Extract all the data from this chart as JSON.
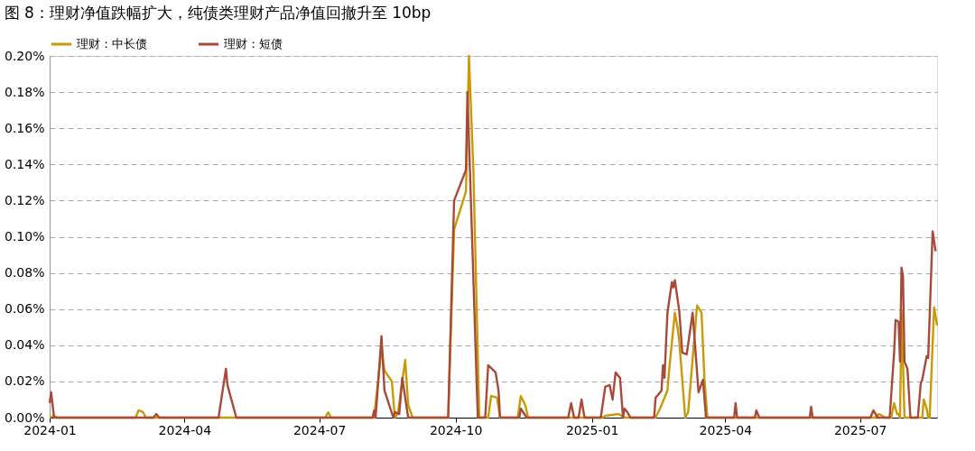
{
  "chart_data": {
    "type": "line",
    "title": "图 8：理财净值跌幅扩大，纯债类理财产品净值回撤升至 10bp",
    "xlim": [
      "2024-01-01",
      "2025-08-22"
    ],
    "xticks": [
      "2024-01",
      "2024-04",
      "2024-07",
      "2024-10",
      "2025-01",
      "2025-04",
      "2025-07"
    ],
    "ylim": [
      0,
      0.2
    ],
    "yticks": [
      {
        "value": 0,
        "label": "0.00%"
      },
      {
        "value": 0.02,
        "label": "0.02%"
      },
      {
        "value": 0.04,
        "label": "0.04%"
      },
      {
        "value": 0.06,
        "label": "0.06%"
      },
      {
        "value": 0.08,
        "label": "0.08%"
      },
      {
        "value": 0.1,
        "label": "0.10%"
      },
      {
        "value": 0.12,
        "label": "0.12%"
      },
      {
        "value": 0.14,
        "label": "0.14%"
      },
      {
        "value": 0.16,
        "label": "0.16%"
      },
      {
        "value": 0.18,
        "label": "0.18%"
      },
      {
        "value": 0.2,
        "label": "0.20%"
      }
    ],
    "grid": "y",
    "legend": "top",
    "marker": "none",
    "line_style": "solid",
    "series": [
      {
        "name": "理财：中长债",
        "color": "#c99a06",
        "x": [
          "2024-01-01",
          "2024-01-04",
          "2024-01-06",
          "2024-02-28",
          "2024-03-01",
          "2024-03-04",
          "2024-03-06",
          "2024-07-05",
          "2024-07-07",
          "2024-07-09",
          "2024-08-07",
          "2024-08-12",
          "2024-08-14",
          "2024-08-19",
          "2024-08-21",
          "2024-08-23",
          "2024-08-28",
          "2024-08-30",
          "2024-09-02",
          "2024-09-26",
          "2024-09-30",
          "2024-10-08",
          "2024-10-10",
          "2024-10-13",
          "2024-10-17",
          "2024-10-23",
          "2024-10-25",
          "2024-10-29",
          "2024-10-31",
          "2024-11-12",
          "2024-11-14",
          "2024-11-17",
          "2024-11-19",
          "2025-01-08",
          "2025-01-10",
          "2025-01-19",
          "2025-01-23",
          "2025-02-13",
          "2025-02-16",
          "2025-02-21",
          "2025-02-22",
          "2025-02-26",
          "2025-02-28",
          "2025-03-01",
          "2025-03-05",
          "2025-03-07",
          "2025-03-13",
          "2025-03-16",
          "2025-03-18",
          "2025-03-20",
          "2025-07-11",
          "2025-07-14",
          "2025-07-18",
          "2025-07-22",
          "2025-07-24",
          "2025-07-26",
          "2025-07-27",
          "2025-07-28",
          "2025-07-29",
          "2025-07-31",
          "2025-08-12",
          "2025-08-13",
          "2025-08-15",
          "2025-08-16",
          "2025-08-17",
          "2025-08-20",
          "2025-08-22"
        ],
        "values": [
          0,
          0.001,
          0,
          0,
          0.004,
          0.003,
          0,
          0,
          0.003,
          0,
          0,
          0.038,
          0.026,
          0.02,
          0,
          0.002,
          0.032,
          0.007,
          0,
          0,
          0.104,
          0.125,
          0.2,
          0.137,
          0,
          0,
          0.012,
          0.011,
          0,
          0,
          0.012,
          0.007,
          0,
          0,
          0.001,
          0.002,
          0,
          0,
          0.005,
          0.015,
          0.025,
          0.058,
          0.049,
          0.042,
          0,
          0.003,
          0.062,
          0.058,
          0.021,
          0,
          0,
          0.002,
          0,
          0,
          0.008,
          0.002,
          0.002,
          0,
          0.059,
          0,
          0,
          0.01,
          0.005,
          0,
          0,
          0.061,
          0.051
        ]
      },
      {
        "name": "理财：短债",
        "color": "#a84a3a",
        "x": [
          "2024-01-01",
          "2024-01-02",
          "2024-01-04",
          "2024-03-11",
          "2024-03-13",
          "2024-03-15",
          "2024-04-24",
          "2024-04-29",
          "2024-04-30",
          "2024-05-06",
          "2024-08-06",
          "2024-08-07",
          "2024-08-08",
          "2024-08-12",
          "2024-08-14",
          "2024-08-20",
          "2024-08-21",
          "2024-08-24",
          "2024-08-26",
          "2024-08-30",
          "2024-09-26",
          "2024-09-30",
          "2024-10-08",
          "2024-10-09",
          "2024-10-16",
          "2024-10-21",
          "2024-10-23",
          "2024-10-28",
          "2024-10-30",
          "2024-10-31",
          "2024-11-13",
          "2024-11-14",
          "2024-11-18",
          "2024-12-16",
          "2024-12-18",
          "2024-12-20",
          "2024-12-23",
          "2024-12-25",
          "2024-12-27",
          "2025-01-07",
          "2025-01-10",
          "2025-01-13",
          "2025-01-15",
          "2025-01-17",
          "2025-01-20",
          "2025-01-22",
          "2025-01-23",
          "2025-01-25",
          "2025-01-27",
          "2025-02-12",
          "2025-02-13",
          "2025-02-17",
          "2025-02-18",
          "2025-02-19",
          "2025-02-21",
          "2025-02-24",
          "2025-02-25",
          "2025-02-26",
          "2025-03-01",
          "2025-03-03",
          "2025-03-06",
          "2025-03-10",
          "2025-03-14",
          "2025-03-17",
          "2025-03-19",
          "2025-04-07",
          "2025-04-08",
          "2025-04-09",
          "2025-04-21",
          "2025-04-22",
          "2025-04-24",
          "2025-05-28",
          "2025-05-29",
          "2025-05-30",
          "2025-07-08",
          "2025-07-10",
          "2025-07-13",
          "2025-07-21",
          "2025-07-24",
          "2025-07-25",
          "2025-07-27",
          "2025-07-28",
          "2025-07-29",
          "2025-07-30",
          "2025-07-31",
          "2025-08-02",
          "2025-08-04",
          "2025-08-09",
          "2025-08-11",
          "2025-08-12",
          "2025-08-15",
          "2025-08-16",
          "2025-08-19",
          "2025-08-21"
        ],
        "values": [
          0.008,
          0.014,
          0,
          0,
          0.002,
          0,
          0,
          0.027,
          0.018,
          0,
          0,
          0.004,
          0,
          0.045,
          0.015,
          0,
          0.003,
          0.002,
          0.022,
          0,
          0,
          0.12,
          0.137,
          0.18,
          0,
          0,
          0.029,
          0.025,
          0.015,
          0,
          0,
          0.005,
          0,
          0,
          0.008,
          0,
          0,
          0.01,
          0,
          0,
          0.017,
          0.018,
          0.01,
          0.025,
          0.022,
          0,
          0.005,
          0.003,
          0,
          0,
          0.011,
          0.015,
          0.029,
          0.022,
          0.058,
          0.075,
          0.072,
          0.076,
          0.059,
          0.036,
          0.035,
          0.058,
          0.014,
          0.021,
          0,
          0,
          0.008,
          0,
          0,
          0.004,
          0,
          0,
          0.006,
          0,
          0,
          0.004,
          0,
          0,
          0.036,
          0.054,
          0.053,
          0.031,
          0.083,
          0.078,
          0.031,
          0.027,
          0,
          0,
          0.019,
          0.021,
          0.034,
          0.033,
          0.103,
          0.092
        ]
      }
    ]
  }
}
